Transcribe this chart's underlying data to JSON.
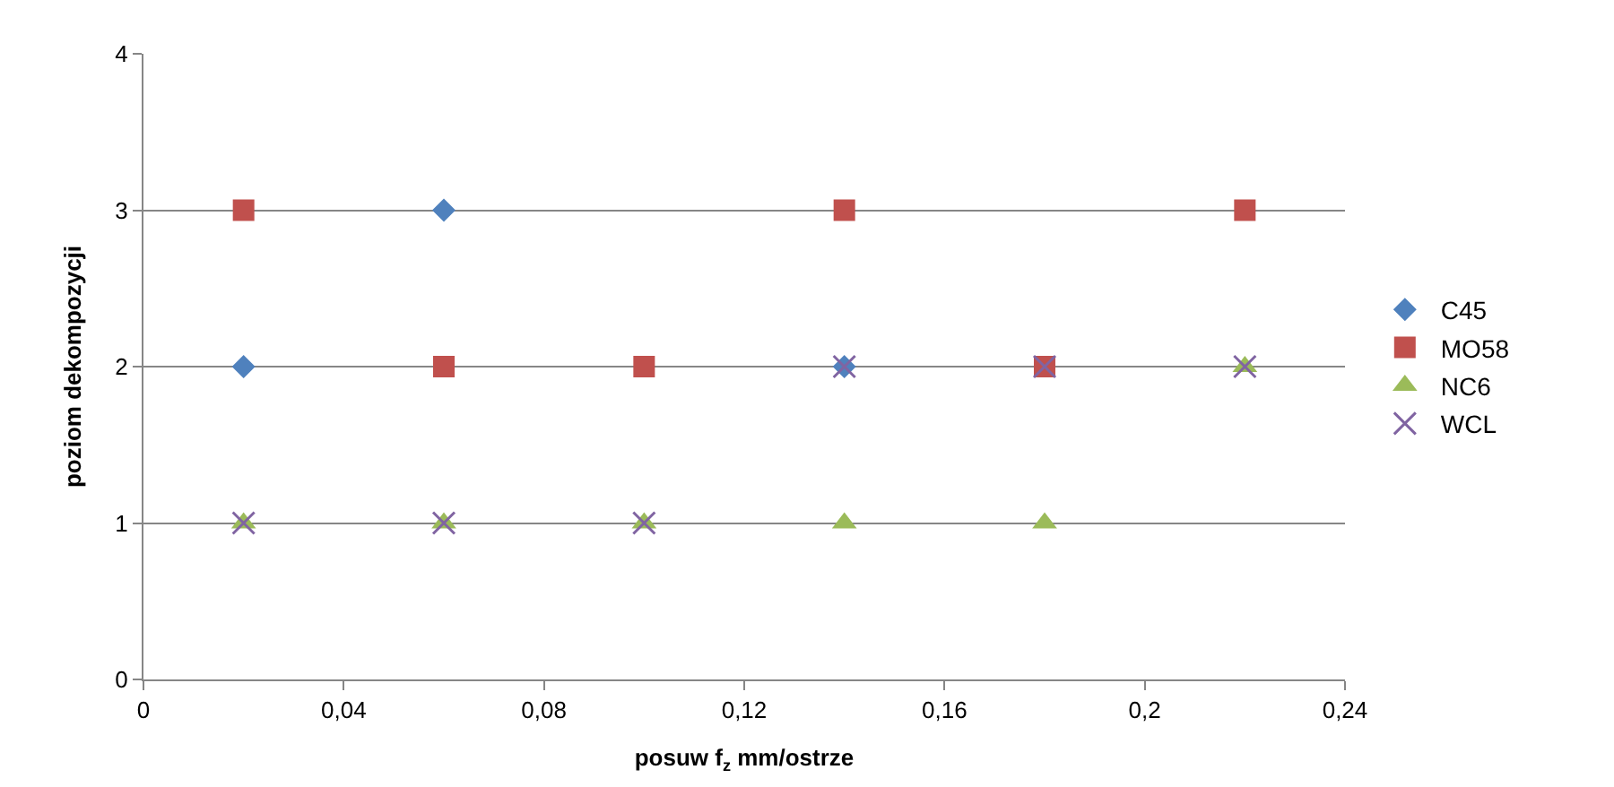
{
  "chart_data": {
    "type": "scatter",
    "xlabel": "posuw f$_{z}$ mm/ostrze",
    "ylabel": "poziom dekompozycji",
    "xlim": [
      0,
      0.24
    ],
    "ylim": [
      0,
      4
    ],
    "xticks": [
      0,
      {
        "value": 0.04,
        "label": "0,04"
      },
      {
        "value": 0.08,
        "label": "0,08"
      },
      {
        "value": 0.12,
        "label": "0,12"
      },
      {
        "value": 0.16,
        "label": "0,16"
      },
      {
        "value": 0.2,
        "label": "0,2"
      },
      {
        "value": 0.24,
        "label": "0,24"
      }
    ],
    "yticks": [
      0,
      1,
      2,
      3,
      4
    ],
    "grid": "y",
    "legend": "right",
    "series": [
      {
        "name": "C45",
        "color": "#4f81bd",
        "marker": "diamond",
        "x": [
          0.02,
          0.06,
          0.14
        ],
        "values": [
          2,
          3,
          2
        ]
      },
      {
        "name": "MO58",
        "color": "#c0504d",
        "marker": "square",
        "x": [
          0.02,
          0.06,
          0.1,
          0.14,
          0.18,
          0.22
        ],
        "values": [
          3,
          2,
          2,
          3,
          2,
          3
        ]
      },
      {
        "name": "NC6",
        "color": "#9bbb59",
        "marker": "triangle",
        "x": [
          0.02,
          0.06,
          0.1,
          0.14,
          0.18,
          0.22
        ],
        "values": [
          1,
          1,
          1,
          1,
          1,
          2
        ]
      },
      {
        "name": "WCL",
        "color": "#8064a2",
        "marker": "cross",
        "x": [
          0.02,
          0.06,
          0.1,
          0.14,
          0.18,
          0.22
        ],
        "values": [
          1,
          1,
          1,
          2,
          2,
          2
        ]
      }
    ]
  }
}
